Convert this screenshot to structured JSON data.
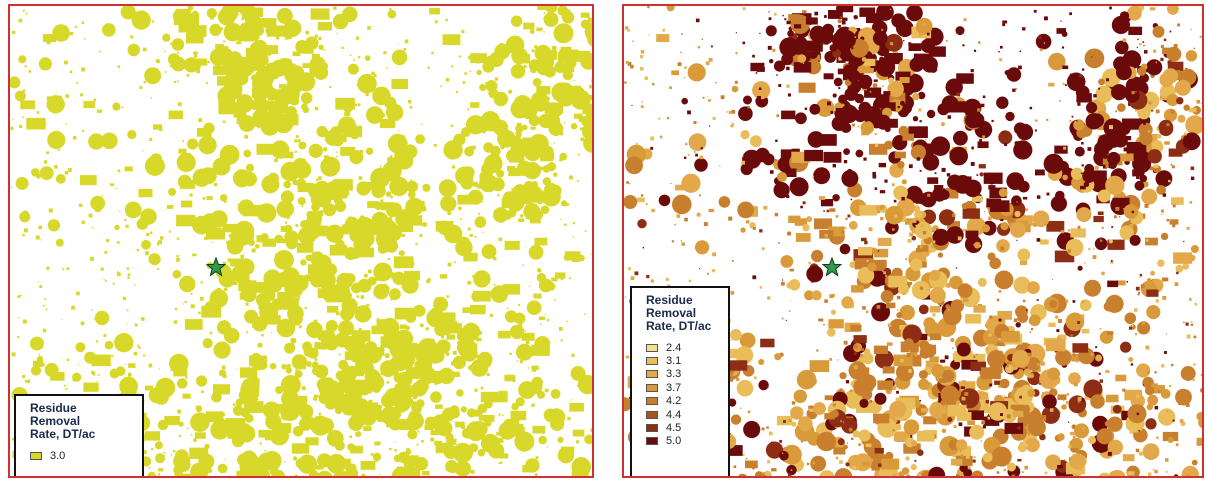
{
  "left_map": {
    "legend": {
      "title": "Residue\nRemoval\nRate, DT/ac",
      "items": [
        {
          "label": "3.0",
          "color": "#d8d82a"
        }
      ]
    },
    "marker_icon": "green-star-icon"
  },
  "right_map": {
    "legend": {
      "title": "Residue\nRemoval\nRate, DT/ac",
      "items": [
        {
          "label": "2.4",
          "color": "#f3e08a"
        },
        {
          "label": "3.1",
          "color": "#e8bd5a"
        },
        {
          "label": "3.3",
          "color": "#e2a84a"
        },
        {
          "label": "3.7",
          "color": "#d99a3a"
        },
        {
          "label": "4.2",
          "color": "#c8802e"
        },
        {
          "label": "4.4",
          "color": "#a9531e"
        },
        {
          "label": "4.5",
          "color": "#8c2d14"
        },
        {
          "label": "5.0",
          "color": "#6b0a0a"
        }
      ]
    },
    "marker_icon": "green-star-icon"
  },
  "colors": {
    "frame": "#d03030",
    "star": "#2e9a4a"
  }
}
